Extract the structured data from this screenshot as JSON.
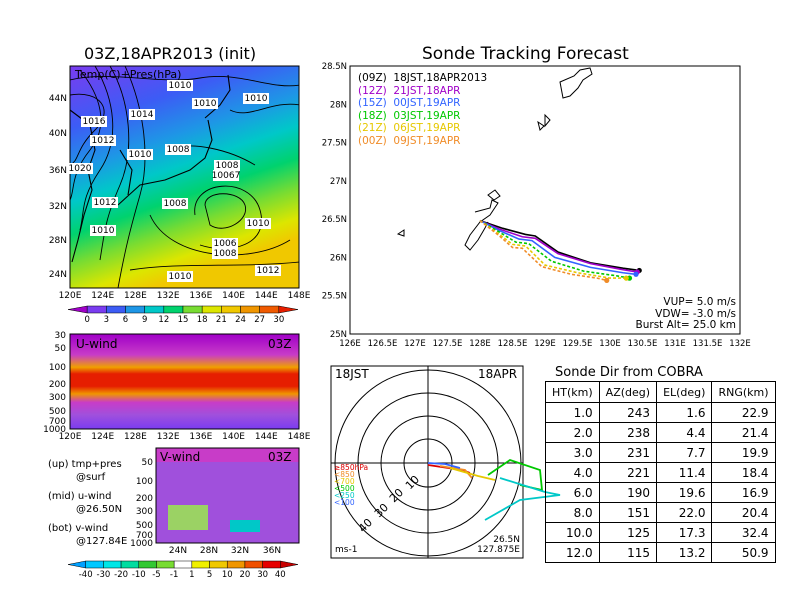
{
  "left_map": {
    "title": "03Z,18APR2013 (init)",
    "field_label": "Temp(C)+Pres(hPa)",
    "lat_labels": [
      "44N",
      "40N",
      "36N",
      "32N",
      "28N",
      "24N"
    ],
    "lon_labels": [
      "120E",
      "124E",
      "128E",
      "132E",
      "136E",
      "140E",
      "144E",
      "148E"
    ],
    "colorbar_labels": [
      "0",
      "3",
      "6",
      "9",
      "12",
      "15",
      "18",
      "21",
      "24",
      "27",
      "30"
    ],
    "colorbar_colors": [
      "#a000c8",
      "#7a3cf0",
      "#3c5cf5",
      "#1e96e6",
      "#00c8c8",
      "#00d26e",
      "#78dc32",
      "#dce600",
      "#f0c800",
      "#f09600",
      "#f05a00",
      "#e61e00"
    ],
    "contour_labels": [
      {
        "text": "1010"
      },
      {
        "text": "1010"
      },
      {
        "text": "1010"
      },
      {
        "text": "1014"
      },
      {
        "text": "1016"
      },
      {
        "text": "1012"
      },
      {
        "text": "1010"
      },
      {
        "text": "1008"
      },
      {
        "text": "1008"
      },
      {
        "text": "10067"
      },
      {
        "text": "1020"
      },
      {
        "text": "1012"
      },
      {
        "text": "1008"
      },
      {
        "text": "1010"
      },
      {
        "text": "1010"
      },
      {
        "text": "1006"
      },
      {
        "text": "1008"
      },
      {
        "text": "1012"
      },
      {
        "text": "1010"
      }
    ]
  },
  "u_panel": {
    "label": "U-wind",
    "time": "03Z",
    "pres_labels": [
      "30",
      "50",
      "100",
      "200",
      "300",
      "500",
      "700",
      "1000"
    ],
    "lon_labels": [
      "120E",
      "124E",
      "128E",
      "132E",
      "136E",
      "140E",
      "144E",
      "148E"
    ]
  },
  "v_panel": {
    "label": "V-wind",
    "time": "03Z",
    "pres_labels": [
      "50",
      "100",
      "200",
      "300",
      "500",
      "700",
      "1000"
    ],
    "lat_labels": [
      "24N",
      "28N",
      "32N",
      "36N"
    ],
    "colorbar_labels": [
      "-40",
      "-30",
      "-20",
      "-10",
      "-5",
      "-1",
      "1",
      "5",
      "10",
      "20",
      "30",
      "40"
    ],
    "colorbar_colors": [
      "#00a0ff",
      "#00c8ff",
      "#00e6e6",
      "#00dca0",
      "#32c832",
      "#78dc32",
      "#ffffff",
      "#f0f000",
      "#f0c800",
      "#f09600",
      "#f05000",
      "#e60000",
      "#c80000"
    ]
  },
  "legend_notes": {
    "up_line1": "(up) tmp+pres",
    "up_line2": "@surf",
    "mid_line1": "(mid) u-wind",
    "mid_line2": "@26.50N",
    "bot_line1": "(bot) v-wind",
    "bot_line2": "@127.84E"
  },
  "tracking": {
    "title": "Sonde Tracking Forecast",
    "lat_labels": [
      "28.5N",
      "28N",
      "27.5N",
      "27N",
      "26.5N",
      "26N",
      "25.5N",
      "25N"
    ],
    "lon_labels": [
      "126E",
      "126.5E",
      "127E",
      "127.5E",
      "128E",
      "128.5E",
      "129E",
      "129.5E",
      "130E",
      "130.5E",
      "131E",
      "131.5E",
      "132E"
    ],
    "legend": [
      {
        "label": "(09Z)  18JST,18APR2013",
        "color": "#000000"
      },
      {
        "label": "(12Z)  21JST,18APR",
        "color": "#a000c8"
      },
      {
        "label": "(15Z)  00JST,19APR",
        "color": "#3264ff"
      },
      {
        "label": "(18Z)  03JST,19APR",
        "color": "#00c800"
      },
      {
        "label": "(21Z)  06JST,19APR",
        "color": "#e6c800"
      },
      {
        "label": "(00Z)  09JST,19APR",
        "color": "#f08c28"
      }
    ],
    "vup": "VUP=  5.0  m/s",
    "vdw": "VDW=  -3.0  m/s",
    "burst": "Burst Alt=  25.0  km"
  },
  "chart_data": [
    {
      "type": "line",
      "title": "Sonde Tracking Forecast",
      "xlabel": "",
      "ylabel": "",
      "xlim": [
        126,
        132
      ],
      "ylim": [
        25,
        28.5
      ],
      "series": [
        {
          "name": "(09Z) 18JST,18APR2013",
          "x": [
            128.0,
            128.35,
            128.7,
            128.85,
            129.2,
            129.7,
            130.2,
            130.45
          ],
          "y": [
            26.48,
            26.38,
            26.3,
            26.28,
            26.07,
            25.93,
            25.86,
            25.83
          ]
        },
        {
          "name": "(12Z) 21JST,18APR",
          "x": [
            128.0,
            128.3,
            128.65,
            128.85,
            129.2,
            129.7,
            130.2,
            130.42
          ],
          "y": [
            26.48,
            26.37,
            26.27,
            26.25,
            26.05,
            25.92,
            25.84,
            25.81
          ]
        },
        {
          "name": "(15Z) 00JST,19APR",
          "x": [
            128.0,
            128.3,
            128.6,
            128.8,
            129.15,
            129.7,
            130.2,
            130.4
          ],
          "y": [
            26.48,
            26.35,
            26.24,
            26.22,
            26.0,
            25.87,
            25.8,
            25.78
          ]
        },
        {
          "name": "(18Z) 03JST,19APR",
          "x": [
            128.0,
            128.3,
            128.55,
            128.75,
            129.1,
            129.6,
            130.1,
            130.3
          ],
          "y": [
            26.48,
            26.33,
            26.2,
            26.18,
            25.95,
            25.82,
            25.76,
            25.73
          ]
        },
        {
          "name": "(21Z) 06JST,19APR",
          "x": [
            128.0,
            128.3,
            128.5,
            128.7,
            129.0,
            129.5,
            130.0,
            130.25
          ],
          "y": [
            26.48,
            26.3,
            26.17,
            26.15,
            25.9,
            25.8,
            25.73,
            25.73
          ]
        },
        {
          "name": "(00Z) 09JST,19APR",
          "x": [
            128.0,
            128.3,
            128.5,
            128.65,
            128.95,
            129.4,
            129.8,
            129.95
          ],
          "y": [
            26.48,
            26.28,
            26.13,
            26.12,
            25.88,
            25.78,
            25.73,
            25.7
          ]
        }
      ]
    },
    {
      "type": "table",
      "title": "Sonde Dir from COBRA",
      "columns": [
        "HT(km)",
        "AZ(deg)",
        "EL(deg)",
        "RNG(km)"
      ],
      "rows": [
        [
          "1.0",
          "243",
          "1.6",
          "22.9"
        ],
        [
          "2.0",
          "238",
          "4.4",
          "21.4"
        ],
        [
          "3.0",
          "231",
          "7.7",
          "19.9"
        ],
        [
          "4.0",
          "221",
          "11.4",
          "18.4"
        ],
        [
          "6.0",
          "190",
          "19.6",
          "16.9"
        ],
        [
          "8.0",
          "151",
          "22.0",
          "20.4"
        ],
        [
          "10.0",
          "125",
          "17.3",
          "32.4"
        ],
        [
          "12.0",
          "115",
          "13.2",
          "50.9"
        ]
      ]
    }
  ],
  "polar": {
    "time_left": "18JST",
    "date_right": "18APR",
    "ring_labels": [
      "10",
      "20",
      "30",
      "40"
    ],
    "loc_line1": "26.5N",
    "loc_line2": "127.875E",
    "unit": "ms-1",
    "levels": [
      {
        "label": "≥850hPa",
        "color": "#dc0000"
      },
      {
        "label": "<850",
        "color": "#f08c28"
      },
      {
        "label": "<700",
        "color": "#e6c800"
      },
      {
        "label": "<500",
        "color": "#00c800"
      },
      {
        "label": "<250",
        "color": "#00c8c8"
      },
      {
        "label": "<100",
        "color": "#3264ff"
      }
    ]
  },
  "dir_table": {
    "title": "Sonde Dir from COBRA",
    "headers": [
      "HT(km)",
      "AZ(deg)",
      "EL(deg)",
      "RNG(km)"
    ]
  }
}
